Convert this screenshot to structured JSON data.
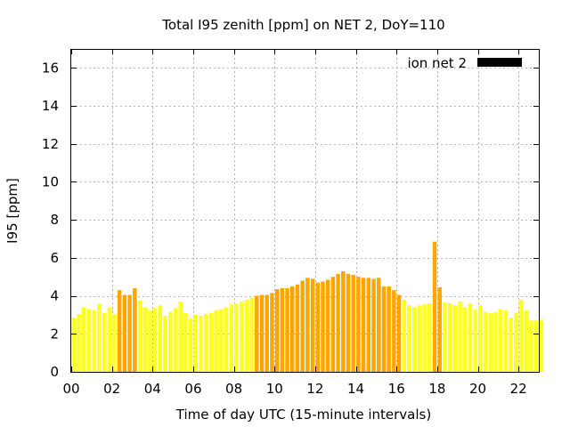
{
  "chart_data": {
    "type": "bar",
    "title": "Total I95 zenith [ppm] on NET 2, DoY=110",
    "xlabel": "Time of day UTC (15-minute intervals)",
    "ylabel": "I95 [ppm]",
    "legend": {
      "label": "ion net 2",
      "position": "top-right"
    },
    "xlim": [
      0,
      23
    ],
    "ylim": [
      0,
      17
    ],
    "x_ticks": [
      0,
      2,
      4,
      6,
      8,
      10,
      12,
      14,
      16,
      18,
      20,
      22
    ],
    "x_tick_labels": [
      "00",
      "02",
      "04",
      "06",
      "08",
      "10",
      "12",
      "14",
      "16",
      "18",
      "20",
      "22"
    ],
    "y_ticks": [
      0,
      2,
      4,
      6,
      8,
      10,
      12,
      14,
      16
    ],
    "y_tick_labels": [
      "0",
      "2",
      "4",
      "6",
      "8",
      "10",
      "12",
      "14",
      "16"
    ],
    "grid": true,
    "bar_interval_hours": 0.25,
    "colors": {
      "low": "#ffff20",
      "high": "#ffa500"
    },
    "values": [
      2.85,
      3.05,
      3.4,
      3.3,
      3.25,
      3.6,
      3.1,
      3.4,
      3.05,
      4.3,
      4.05,
      4.05,
      4.4,
      3.75,
      3.4,
      3.25,
      3.35,
      3.5,
      2.95,
      3.15,
      3.35,
      3.7,
      3.1,
      2.8,
      3.0,
      2.95,
      3.05,
      3.1,
      3.25,
      3.3,
      3.4,
      3.55,
      3.6,
      3.7,
      3.8,
      3.9,
      4.0,
      4.05,
      4.05,
      4.15,
      4.35,
      4.4,
      4.4,
      4.5,
      4.6,
      4.8,
      4.95,
      4.9,
      4.7,
      4.75,
      4.85,
      5.0,
      5.15,
      5.3,
      5.15,
      5.1,
      5.0,
      4.95,
      4.95,
      4.9,
      4.95,
      4.5,
      4.5,
      4.3,
      4.05,
      3.8,
      3.5,
      3.4,
      3.5,
      3.55,
      3.6,
      6.85,
      4.45,
      3.65,
      3.6,
      3.5,
      3.7,
      3.4,
      3.6,
      3.3,
      3.5,
      3.15,
      3.1,
      3.15,
      3.3,
      3.25,
      2.85,
      3.1,
      3.8,
      3.25,
      2.7,
      2.7,
      2.75
    ],
    "bar_colors": [
      "low",
      "low",
      "low",
      "low",
      "low",
      "low",
      "low",
      "low",
      "low",
      "high",
      "high",
      "high",
      "high",
      "low",
      "low",
      "low",
      "low",
      "low",
      "low",
      "low",
      "low",
      "low",
      "low",
      "low",
      "low",
      "low",
      "low",
      "low",
      "low",
      "low",
      "low",
      "low",
      "low",
      "low",
      "low",
      "low",
      "high",
      "high",
      "high",
      "high",
      "high",
      "high",
      "high",
      "high",
      "high",
      "high",
      "high",
      "high",
      "high",
      "high",
      "high",
      "high",
      "high",
      "high",
      "high",
      "high",
      "high",
      "high",
      "high",
      "high",
      "high",
      "high",
      "high",
      "high",
      "high",
      "low",
      "low",
      "low",
      "low",
      "low",
      "low",
      "high",
      "high",
      "low",
      "low",
      "low",
      "low",
      "low",
      "low",
      "low",
      "low",
      "low",
      "low",
      "low",
      "low",
      "low",
      "low",
      "low",
      "low",
      "low",
      "low",
      "low",
      "low"
    ]
  }
}
